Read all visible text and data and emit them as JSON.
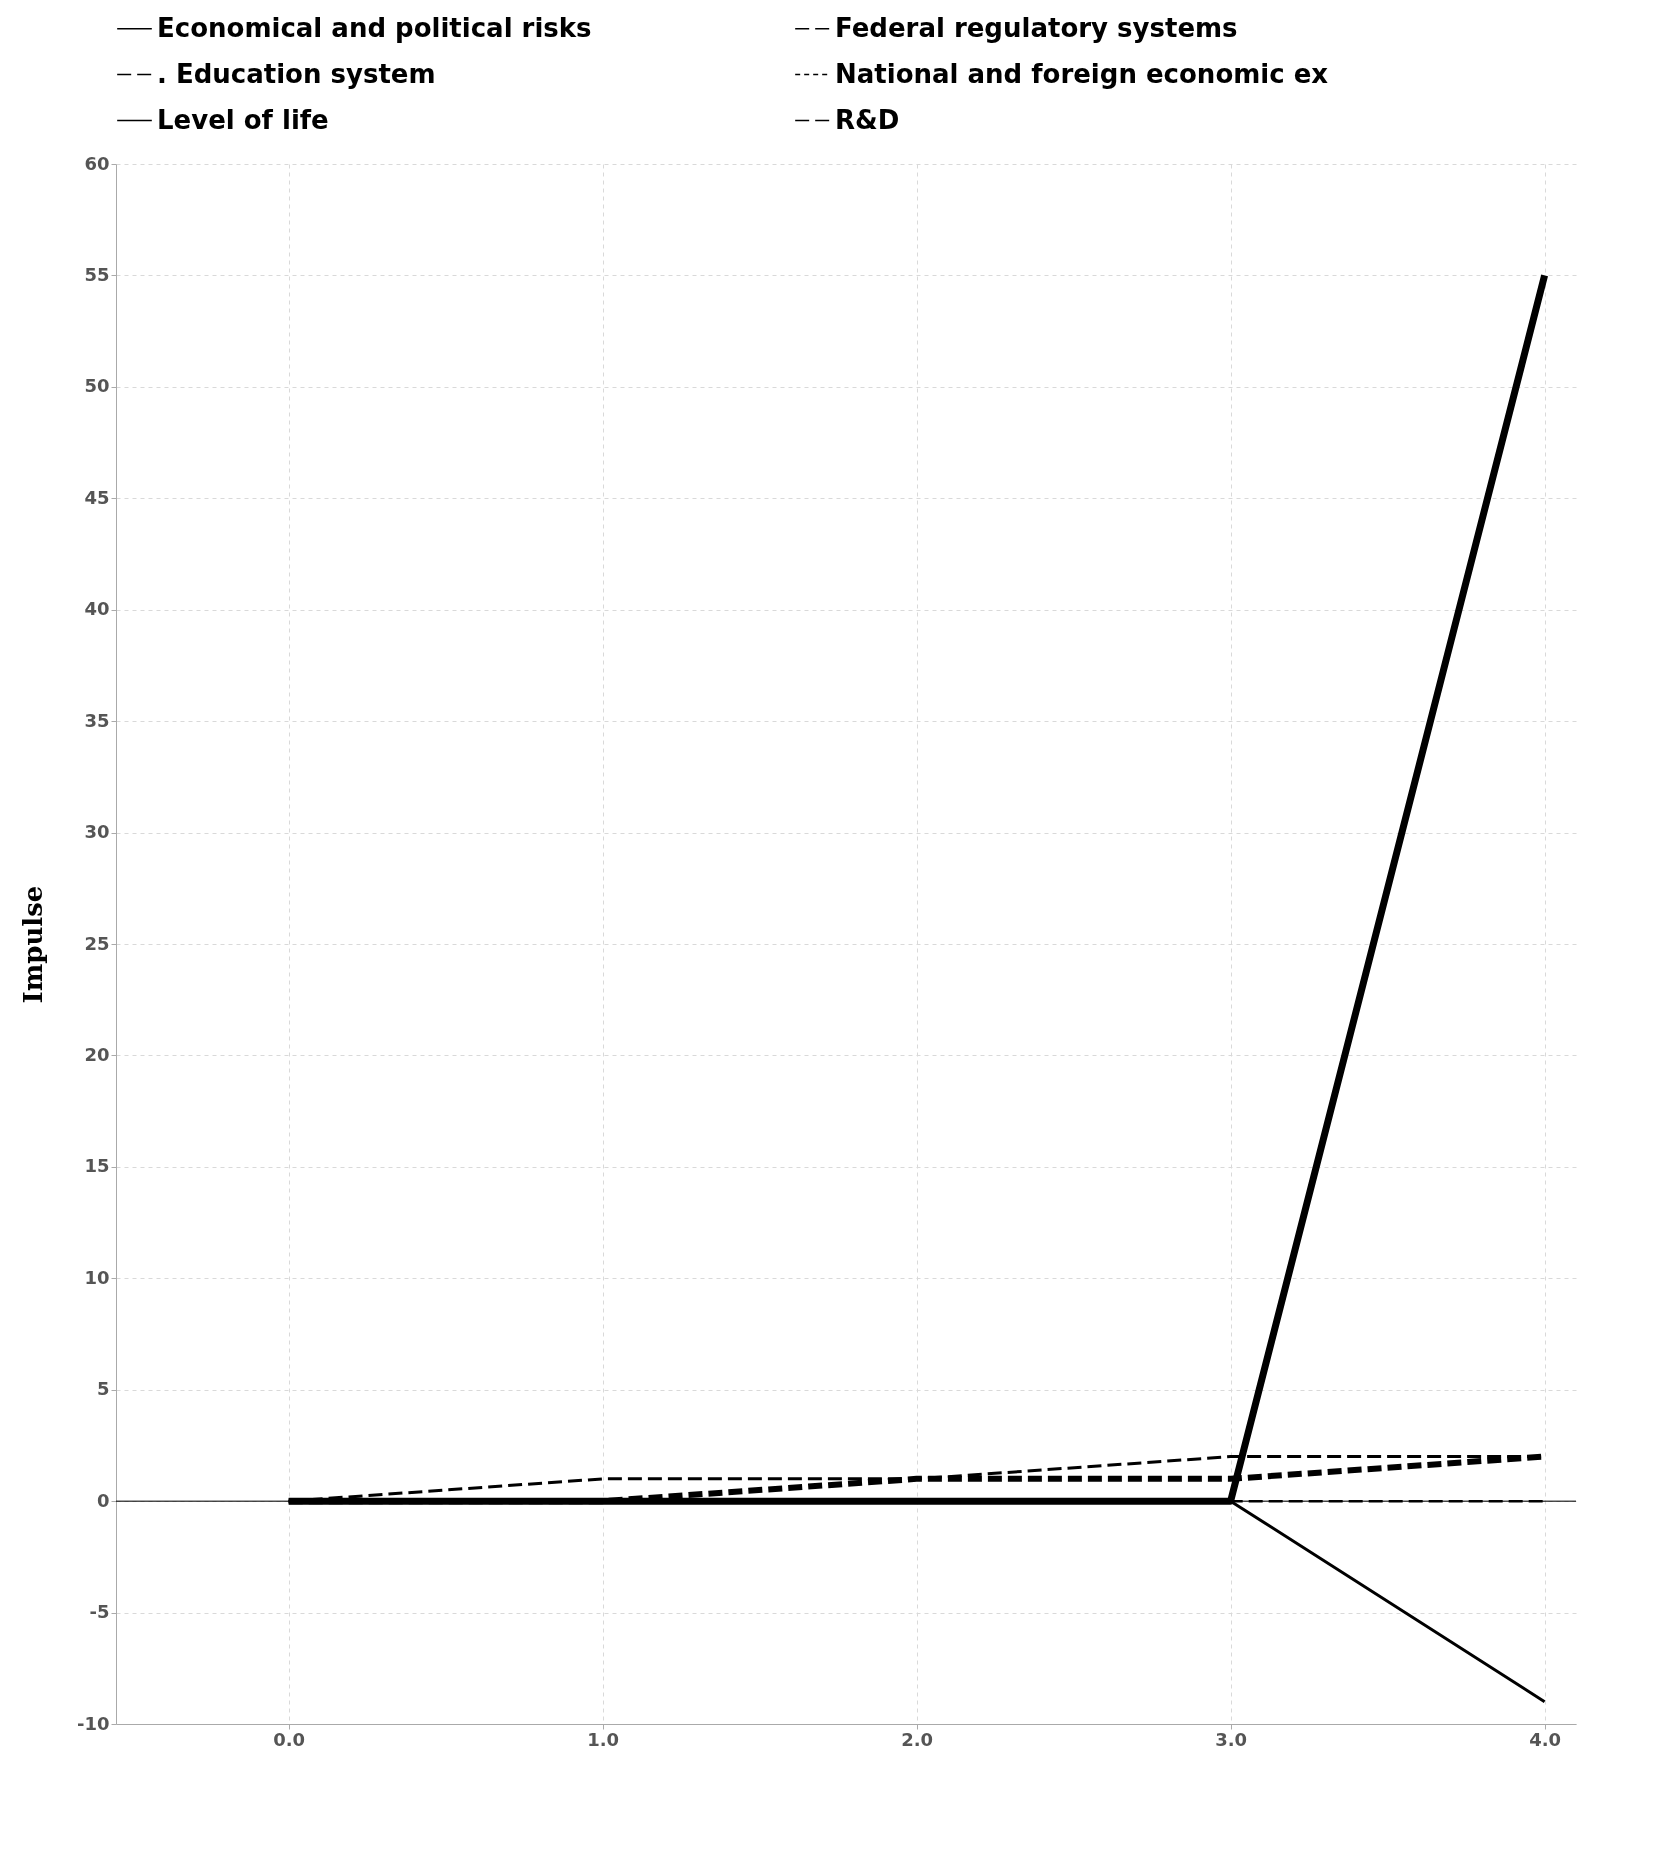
{
  "chart_data": {
    "type": "line",
    "ylabel": "Impulse",
    "x": [
      0,
      1,
      2,
      3,
      4
    ],
    "series": [
      {
        "name": "Economical and political risks",
        "color": "#000000",
        "line_style": "solid",
        "values": [
          0,
          0,
          0,
          0,
          -9
        ]
      },
      {
        "name": "Federal regulatory systems",
        "color": "#000000",
        "line_style": "dashed",
        "values": [
          0,
          0,
          0,
          0,
          0
        ]
      },
      {
        "name": ". Education system",
        "color": "#000000",
        "line_style": "dashed",
        "values": [
          0,
          1,
          1,
          2,
          2
        ]
      },
      {
        "name": "National and foreign economic ex",
        "color": "#000000",
        "line_style": "dotted",
        "values": [
          null,
          null,
          null,
          null,
          null
        ]
      },
      {
        "name": "Level of life",
        "color": "#000000",
        "line_style": "solid",
        "values": [
          0,
          0,
          0,
          0,
          55
        ]
      },
      {
        "name": "R&D",
        "color": "#000000",
        "line_style": "dashed",
        "values": [
          0,
          0,
          1,
          1,
          2
        ]
      }
    ],
    "xlim": [
      -0.55,
      4.1
    ],
    "xticks": [
      {
        "value": 0,
        "label": "0.0"
      },
      {
        "value": 1,
        "label": "1.0"
      },
      {
        "value": 2,
        "label": "2.0"
      },
      {
        "value": 3,
        "label": "3.0"
      },
      {
        "value": 4,
        "label": "4.0"
      }
    ],
    "ylim": [
      -10,
      60
    ],
    "yticks": [
      -10,
      -5,
      0,
      5,
      10,
      15,
      20,
      25,
      30,
      35,
      40,
      45,
      50,
      55,
      60
    ],
    "ref_lines": [
      {
        "axis": "y",
        "value": 0,
        "color": "#000000",
        "line_style": "solid"
      }
    ],
    "grid": true,
    "legend": "top",
    "marker": "none"
  }
}
